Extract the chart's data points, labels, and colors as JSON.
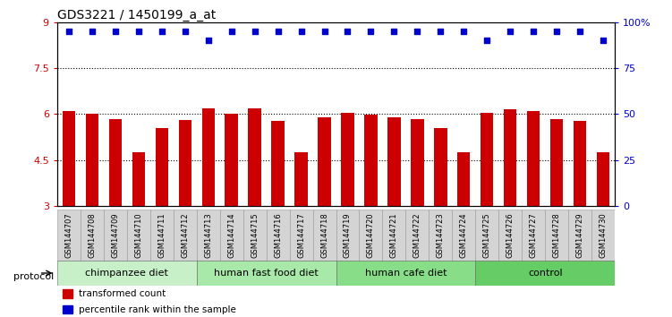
{
  "title": "GDS3221 / 1450199_a_at",
  "samples": [
    "GSM144707",
    "GSM144708",
    "GSM144709",
    "GSM144710",
    "GSM144711",
    "GSM144712",
    "GSM144713",
    "GSM144714",
    "GSM144715",
    "GSM144716",
    "GSM144717",
    "GSM144718",
    "GSM144719",
    "GSM144720",
    "GSM144721",
    "GSM144722",
    "GSM144723",
    "GSM144724",
    "GSM144725",
    "GSM144726",
    "GSM144727",
    "GSM144728",
    "GSM144729",
    "GSM144730"
  ],
  "bar_values": [
    6.1,
    6.02,
    5.85,
    4.75,
    5.55,
    5.82,
    6.2,
    6.02,
    6.2,
    5.78,
    4.75,
    5.9,
    6.05,
    5.98,
    5.9,
    5.85,
    5.55,
    4.75,
    6.05,
    6.15,
    6.1,
    5.85,
    5.78,
    4.75
  ],
  "percentile_values": [
    95,
    95,
    95,
    95,
    95,
    95,
    90,
    95,
    95,
    95,
    95,
    95,
    95,
    95,
    95,
    95,
    95,
    95,
    90,
    95,
    95,
    95,
    95,
    90
  ],
  "bar_color": "#cc0000",
  "percentile_color": "#0000cc",
  "ylim_left": [
    3,
    9
  ],
  "ylim_right": [
    0,
    100
  ],
  "yticks_left": [
    3,
    4.5,
    6,
    7.5,
    9
  ],
  "yticks_right": [
    0,
    25,
    50,
    75,
    100
  ],
  "ytick_labels_left": [
    "3",
    "4.5",
    "6",
    "7.5",
    "9"
  ],
  "ytick_labels_right": [
    "0",
    "25",
    "50",
    "75",
    "100%"
  ],
  "bar_bottom": 3,
  "groups": [
    {
      "label": "chimpanzee diet",
      "start": 0,
      "end": 6,
      "color": "#c8f0c8"
    },
    {
      "label": "human fast food diet",
      "start": 6,
      "end": 12,
      "color": "#a8e8a8"
    },
    {
      "label": "human cafe diet",
      "start": 12,
      "end": 18,
      "color": "#88dd88"
    },
    {
      "label": "control",
      "start": 18,
      "end": 24,
      "color": "#66cc66"
    }
  ],
  "protocol_label": "protocol",
  "legend": [
    {
      "label": "transformed count",
      "color": "#cc0000"
    },
    {
      "label": "percentile rank within the sample",
      "color": "#0000cc"
    }
  ],
  "background_color": "#ffffff",
  "bar_width": 0.55,
  "title_fontsize": 10,
  "tick_fontsize": 8,
  "sample_fontsize": 6
}
